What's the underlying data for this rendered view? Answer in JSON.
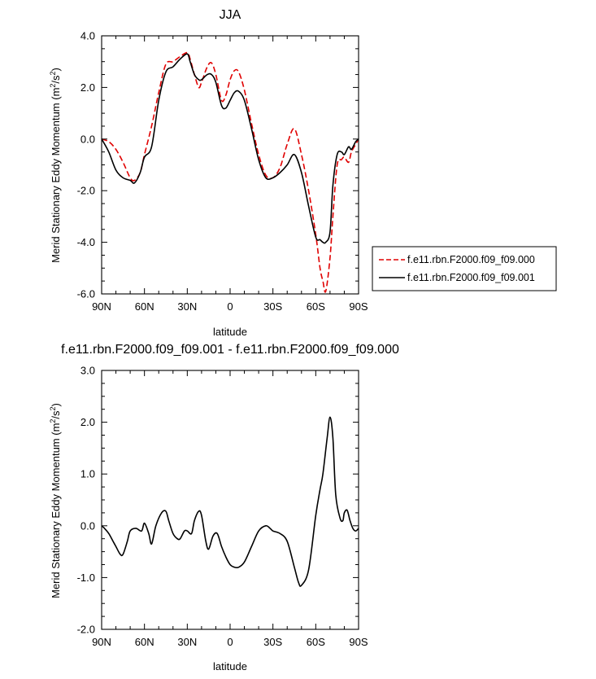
{
  "chart_data": [
    {
      "type": "line",
      "title": "JJA",
      "xlabel": "latitude",
      "ylabel": "Merid Stationary Eddy Momentum (m²/s²)",
      "ylabel_main": "Merid Stationary Eddy Momentum (m",
      "ylabel_unit_mid": "/s",
      "ylabel_unit_end": ")",
      "ylabel_sup": "2",
      "xlim": [
        90,
        -90
      ],
      "ylim": [
        -6.0,
        4.0
      ],
      "xticks": [
        90,
        60,
        30,
        0,
        -30,
        -60,
        -90
      ],
      "xtick_labels": [
        "90N",
        "60N",
        "30N",
        "0",
        "30S",
        "60S",
        "90S"
      ],
      "yticks": [
        -6.0,
        -4.0,
        -2.0,
        0.0,
        2.0,
        4.0
      ],
      "ytick_labels": [
        "-6.0",
        "-4.0",
        "-2.0",
        "0.0",
        "2.0",
        "4.0"
      ],
      "legend_position": "right",
      "series": [
        {
          "name": "f.e11.rbn.F2000.f09_f09.000",
          "color": "#e00000",
          "dash": "dashed",
          "x": [
            90,
            85,
            80,
            75,
            70,
            67,
            63,
            60,
            55,
            50,
            45,
            40,
            35,
            30,
            28,
            25,
            22,
            20,
            16,
            13,
            10,
            6,
            3,
            0,
            -3,
            -6,
            -10,
            -15,
            -20,
            -25,
            -30,
            -35,
            -40,
            -45,
            -50,
            -55,
            -60,
            -63,
            -65,
            -67,
            -70,
            -72,
            -75,
            -78,
            -80,
            -83,
            -85,
            -88,
            -90
          ],
          "values": [
            0.0,
            -0.1,
            -0.4,
            -0.9,
            -1.5,
            -1.6,
            -1.3,
            -0.6,
            0.5,
            1.8,
            2.9,
            3.0,
            3.2,
            3.35,
            3.1,
            2.5,
            2.0,
            2.2,
            2.8,
            2.95,
            2.5,
            1.5,
            1.7,
            2.3,
            2.65,
            2.6,
            1.9,
            0.6,
            -0.6,
            -1.4,
            -1.5,
            -1.1,
            -0.2,
            0.4,
            -0.6,
            -2.0,
            -3.7,
            -5.0,
            -5.5,
            -5.9,
            -4.6,
            -3.0,
            -1.0,
            -0.8,
            -0.7,
            -0.9,
            -0.5,
            -0.2,
            0.0
          ]
        },
        {
          "name": "f.e11.rbn.F2000.f09_f09.001",
          "color": "#000000",
          "dash": "solid",
          "x": [
            90,
            85,
            80,
            75,
            70,
            67,
            63,
            60,
            55,
            50,
            45,
            40,
            35,
            30,
            28,
            25,
            22,
            20,
            16,
            13,
            10,
            6,
            3,
            0,
            -3,
            -6,
            -10,
            -15,
            -20,
            -25,
            -30,
            -35,
            -40,
            -45,
            -50,
            -55,
            -60,
            -63,
            -65,
            -67,
            -70,
            -72,
            -75,
            -78,
            -80,
            -83,
            -85,
            -88,
            -90
          ],
          "values": [
            0.0,
            -0.5,
            -1.2,
            -1.5,
            -1.6,
            -1.7,
            -1.3,
            -0.7,
            -0.3,
            1.5,
            2.6,
            2.8,
            3.1,
            3.3,
            3.0,
            2.5,
            2.3,
            2.3,
            2.5,
            2.5,
            2.2,
            1.3,
            1.2,
            1.5,
            1.8,
            1.85,
            1.5,
            0.4,
            -0.8,
            -1.5,
            -1.5,
            -1.3,
            -1.0,
            -0.6,
            -1.3,
            -2.6,
            -3.8,
            -3.9,
            -4.0,
            -4.0,
            -3.6,
            -1.8,
            -0.6,
            -0.5,
            -0.6,
            -0.3,
            -0.4,
            -0.1,
            0.0
          ]
        }
      ]
    },
    {
      "type": "line",
      "title": "f.e11.rbn.F2000.f09_f09.001 - f.e11.rbn.F2000.f09_f09.000",
      "xlabel": "latitude",
      "ylabel": "Merid Stationary Eddy Momentum (m²/s²)",
      "ylabel_main": "Merid Stationary Eddy Momentum (m",
      "ylabel_unit_mid": "/s",
      "ylabel_unit_end": ")",
      "ylabel_sup": "2",
      "xlim": [
        90,
        -90
      ],
      "ylim": [
        -2.0,
        3.0
      ],
      "xticks": [
        90,
        60,
        30,
        0,
        -30,
        -60,
        -90
      ],
      "xtick_labels": [
        "90N",
        "60N",
        "30N",
        "0",
        "30S",
        "60S",
        "90S"
      ],
      "yticks": [
        -2.0,
        -1.0,
        0.0,
        1.0,
        2.0,
        3.0
      ],
      "ytick_labels": [
        "-2.0",
        "-1.0",
        "0.0",
        "1.0",
        "2.0",
        "3.0"
      ],
      "series": [
        {
          "color": "#000000",
          "dash": "solid",
          "x": [
            90,
            88,
            85,
            82,
            80,
            77,
            75,
            72,
            70,
            66,
            62,
            60,
            57,
            55,
            52,
            48,
            45,
            43,
            40,
            37,
            35,
            32,
            30,
            27,
            25,
            22,
            20,
            17,
            15,
            12,
            9,
            6,
            3,
            0,
            -3,
            -6,
            -10,
            -15,
            -20,
            -25,
            -28,
            -30,
            -35,
            -40,
            -45,
            -48,
            -50,
            -55,
            -60,
            -63,
            -65,
            -68,
            -70,
            -72,
            -74,
            -77,
            -79,
            -80,
            -82,
            -84,
            -86,
            -88,
            -90
          ],
          "values": [
            0.0,
            -0.05,
            -0.15,
            -0.3,
            -0.4,
            -0.55,
            -0.55,
            -0.3,
            -0.1,
            -0.05,
            -0.1,
            0.05,
            -0.15,
            -0.35,
            0.0,
            0.25,
            0.28,
            0.1,
            -0.15,
            -0.25,
            -0.25,
            -0.1,
            -0.1,
            -0.15,
            0.1,
            0.28,
            0.2,
            -0.3,
            -0.45,
            -0.2,
            -0.15,
            -0.4,
            -0.6,
            -0.75,
            -0.8,
            -0.8,
            -0.7,
            -0.4,
            -0.1,
            0.0,
            -0.05,
            -0.1,
            -0.15,
            -0.3,
            -0.8,
            -1.1,
            -1.15,
            -0.85,
            0.2,
            0.7,
            1.0,
            1.7,
            2.1,
            1.7,
            0.6,
            0.15,
            0.1,
            0.25,
            0.3,
            0.1,
            -0.05,
            -0.1,
            -0.05
          ]
        }
      ]
    }
  ]
}
